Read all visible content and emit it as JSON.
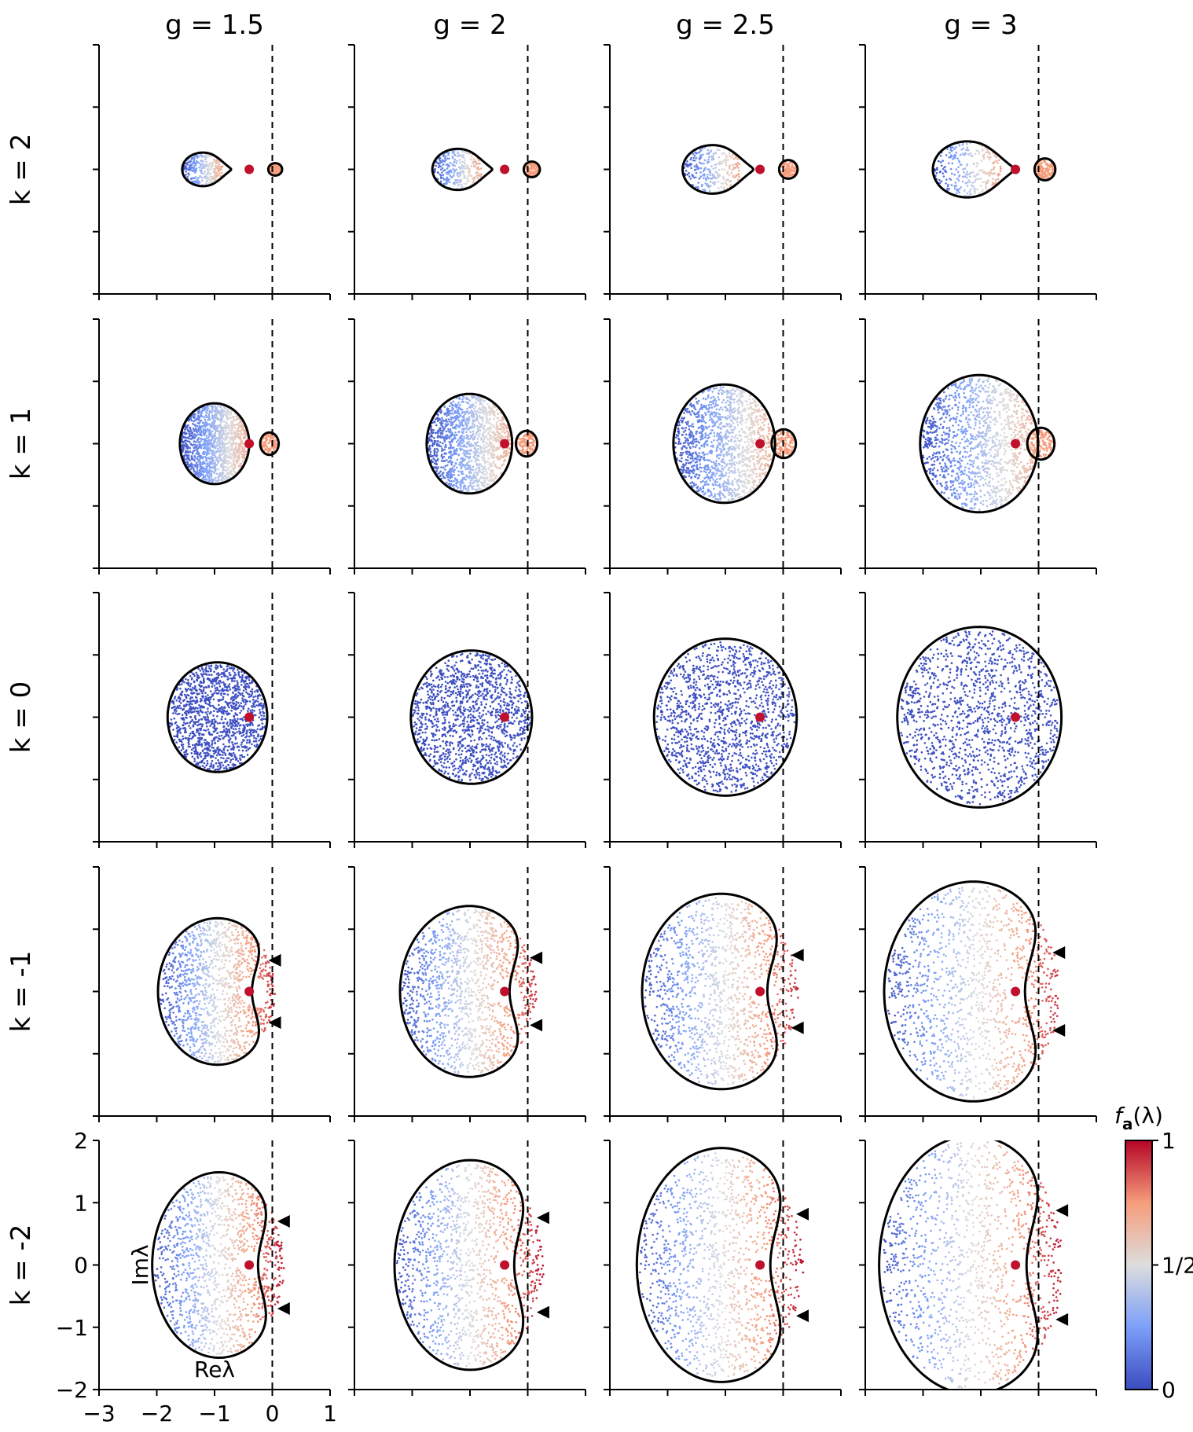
{
  "chart_data": {
    "type": "scatter",
    "layout": "grid of 5 rows x 4 columns",
    "column_titles": [
      "g = 1.5",
      "g = 2",
      "g = 2.5",
      "g = 3"
    ],
    "row_titles": [
      "k = 2",
      "k = 1",
      "k = 0",
      "k = -1",
      "k = -2"
    ],
    "g_values": [
      1.5,
      2,
      2.5,
      3
    ],
    "k_values": [
      2,
      1,
      0,
      -1,
      -2
    ],
    "xlabel": "Reλ",
    "ylabel": "Imλ",
    "xlim": [
      -3,
      1
    ],
    "ylim": [
      -2,
      2
    ],
    "x_ticks": [
      -3,
      -2,
      -1,
      0,
      1
    ],
    "y_ticks": [
      -2,
      -1,
      0,
      1,
      2
    ],
    "x_tick_labels": [
      "−3",
      "−2",
      "−1",
      "0",
      "1"
    ],
    "y_tick_labels": [
      "−2",
      "−1",
      "0",
      "1",
      "2"
    ],
    "tick_labels_shown_only_on": "bottom-left panel",
    "reference_line": {
      "x": 0,
      "style": "dashed",
      "color": "#000000"
    },
    "highlight_point": {
      "x": -0.4,
      "y": 0,
      "color": "#c0102c"
    },
    "colorbar": {
      "label": "f_a(λ)",
      "label_parts": {
        "f": "f",
        "subscript": "a",
        "rest": "(λ)"
      },
      "ticks": [
        0,
        0.5,
        1
      ],
      "tick_labels": [
        "0",
        "1/2",
        "1"
      ],
      "colormap": "coolwarm",
      "colors": {
        "low": "#3b4cc0",
        "mid": "#dddddd",
        "high": "#b40426"
      }
    },
    "marker_color": "#000000",
    "grid": false,
    "legend": "none"
  }
}
